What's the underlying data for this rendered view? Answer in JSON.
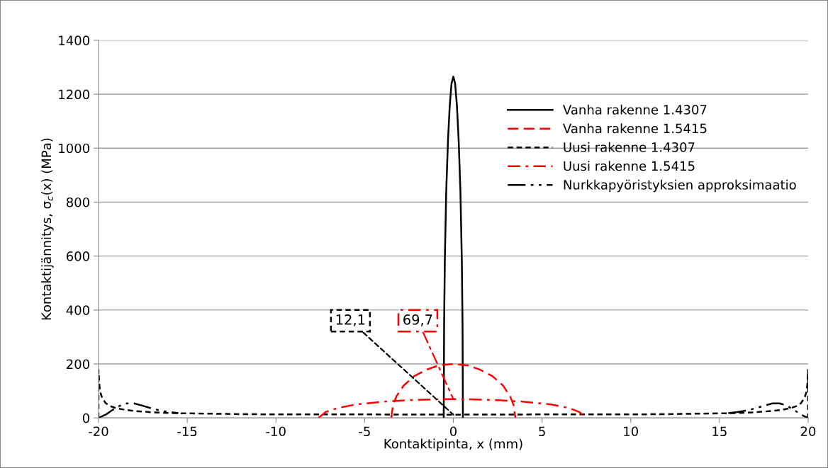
{
  "chart_data": {
    "type": "line",
    "xlabel": "Kontaktipinta, x (mm)",
    "ylabel": "Kontaktijännitys, σ$_{c}$(x) (MPa)",
    "xlim": [
      -20,
      20
    ],
    "xticks": [
      -20,
      -15,
      -10,
      -5,
      0,
      5,
      10,
      15,
      20
    ],
    "ylim": [
      0,
      1400
    ],
    "yticks": [
      0,
      200,
      400,
      600,
      800,
      1000,
      1200,
      1400
    ],
    "grid": "y",
    "legend": "top right",
    "marker": "none",
    "series": [
      {
        "name": "Vanha rakenne 1.4307",
        "color": "#000000",
        "line_style": "solid",
        "x": [
          -0.54,
          -0.52,
          -0.48,
          -0.4,
          -0.3,
          -0.2,
          -0.1,
          0,
          0.1,
          0.2,
          0.3,
          0.4,
          0.48,
          0.52,
          0.54
        ],
        "values": [
          0,
          340,
          580,
          840,
          1030,
          1160,
          1240,
          1265,
          1240,
          1160,
          1030,
          840,
          580,
          340,
          0
        ]
      },
      {
        "name": "Vanha rakenne 1.5415",
        "color": "#ff0000",
        "line_style": "dashed",
        "x": [
          -3.5,
          -3.4,
          -3.2,
          -2.8,
          -2.2,
          -1.5,
          -0.8,
          0,
          0.8,
          1.5,
          2.2,
          2.8,
          3.2,
          3.4,
          3.5
        ],
        "values": [
          0,
          47,
          81,
          120,
          155,
          179,
          195,
          200,
          195,
          179,
          155,
          120,
          81,
          47,
          0
        ]
      },
      {
        "name": "Uusi rakenne 1.4307",
        "color": "#000000",
        "line_style": "dashed_short",
        "x": [
          -20,
          -20,
          -19.95,
          -19.9,
          -19.8,
          -19.6,
          -19.4,
          -19,
          -18.5,
          -18,
          -17,
          -16,
          -15,
          -12,
          -10,
          -5,
          0,
          5,
          10,
          12,
          15,
          16,
          17,
          18,
          18.5,
          19,
          19.4,
          19.6,
          19.8,
          19.9,
          19.95,
          20,
          20
        ],
        "values": [
          0,
          178,
          120,
          95,
          75,
          55,
          45,
          36,
          30,
          26,
          21,
          18,
          17,
          14,
          13,
          13,
          12.1,
          13,
          13,
          14,
          17,
          18,
          21,
          26,
          30,
          36,
          45,
          55,
          75,
          95,
          120,
          178,
          0
        ]
      },
      {
        "name": "Uusi rakenne 1.5415",
        "color": "#ff0000",
        "line_style": "dashdot",
        "x": [
          -7.6,
          -7.2,
          -6.5,
          -5.5,
          -4,
          -2.5,
          -1,
          0,
          1,
          2.5,
          4,
          5.5,
          6.5,
          7.1,
          7.5
        ],
        "values": [
          0,
          22,
          37,
          50,
          60,
          66,
          69,
          69.7,
          69,
          66,
          60,
          50,
          37,
          22,
          0
        ]
      },
      {
        "name": "Nurkkapyöristyksien approksimaatio",
        "color": "#000000",
        "line_style": "dashdotdot",
        "x": [
          -20,
          -19.6,
          -19.2,
          -18.8,
          -18.4,
          -18,
          -17.5,
          -17,
          -16.5,
          -16,
          -15.5,
          null,
          15.5,
          16,
          16.5,
          17,
          17.5,
          18,
          18.4,
          18.8,
          19.2,
          19.6,
          20
        ],
        "values": [
          0,
          12,
          30,
          45,
          54,
          54,
          45,
          35,
          27,
          22,
          18,
          null,
          18,
          22,
          27,
          35,
          45,
          54,
          54,
          45,
          30,
          12,
          0
        ]
      }
    ],
    "annotations": [
      {
        "text": "12,1",
        "x": 0,
        "y": 12.1
      },
      {
        "text": "69,7",
        "x": 0,
        "y": 69.7
      }
    ]
  }
}
